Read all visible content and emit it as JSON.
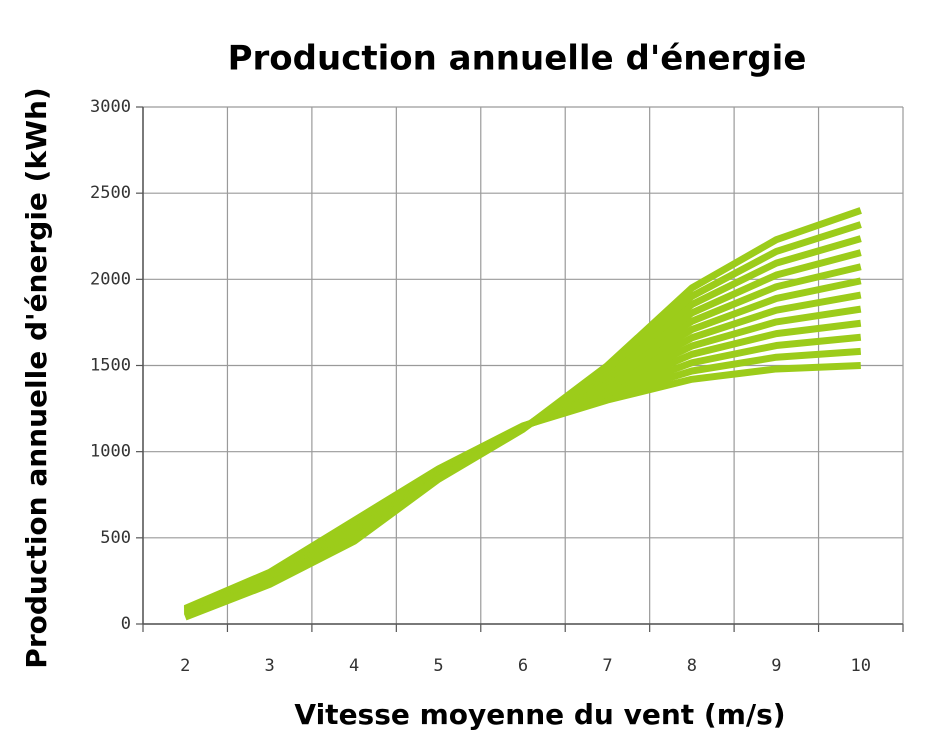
{
  "chart_data": {
    "type": "line",
    "title": "Production annuelle d'énergie",
    "xlabel": "Vitesse moyenne du vent (m/s)",
    "ylabel": "Production annuelle d'énergie (kWh)",
    "categories": [
      "2",
      "3",
      "4",
      "5",
      "6",
      "7",
      "8",
      "9",
      "10"
    ],
    "ylim": [
      0,
      3000
    ],
    "yticks": [
      0,
      500,
      1000,
      1500,
      2000,
      2500,
      3000
    ],
    "grid": true,
    "series": [
      {
        "color": "#9ccc1a",
        "values": [
          90,
          300,
          600,
          900,
          1150,
          1300,
          1420,
          1480,
          1500
        ]
      },
      {
        "color": "#9ccc1a",
        "values": [
          85,
          294,
          589,
          895,
          1148,
          1318,
          1468,
          1548,
          1582
        ]
      },
      {
        "color": "#9ccc1a",
        "values": [
          81,
          287,
          578,
          889,
          1146,
          1336,
          1516,
          1616,
          1664
        ]
      },
      {
        "color": "#9ccc1a",
        "values": [
          76,
          281,
          567,
          884,
          1145,
          1355,
          1565,
          1685,
          1745
        ]
      },
      {
        "color": "#9ccc1a",
        "values": [
          72,
          275,
          556,
          878,
          1143,
          1373,
          1613,
          1753,
          1827
        ]
      },
      {
        "color": "#9ccc1a",
        "values": [
          67,
          268,
          545,
          873,
          1141,
          1391,
          1661,
          1821,
          1909
        ]
      },
      {
        "color": "#9ccc1a",
        "values": [
          63,
          262,
          535,
          867,
          1139,
          1409,
          1709,
          1889,
          1991
        ]
      },
      {
        "color": "#9ccc1a",
        "values": [
          58,
          255,
          524,
          862,
          1137,
          1427,
          1757,
          1957,
          2073
        ]
      },
      {
        "color": "#9ccc1a",
        "values": [
          54,
          249,
          513,
          856,
          1135,
          1445,
          1805,
          2025,
          2155
        ]
      },
      {
        "color": "#9ccc1a",
        "values": [
          49,
          243,
          502,
          851,
          1134,
          1464,
          1854,
          2094,
          2236
        ]
      },
      {
        "color": "#9ccc1a",
        "values": [
          45,
          236,
          491,
          845,
          1132,
          1482,
          1902,
          2162,
          2318
        ]
      },
      {
        "color": "#9ccc1a",
        "values": [
          40,
          230,
          480,
          840,
          1130,
          1500,
          1950,
          2230,
          2400
        ]
      }
    ]
  }
}
